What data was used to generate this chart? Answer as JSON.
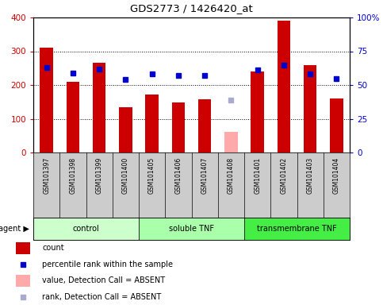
{
  "title": "GDS2773 / 1426420_at",
  "samples": [
    "GSM101397",
    "GSM101398",
    "GSM101399",
    "GSM101400",
    "GSM101405",
    "GSM101406",
    "GSM101407",
    "GSM101408",
    "GSM101401",
    "GSM101402",
    "GSM101403",
    "GSM101404"
  ],
  "counts": [
    310,
    210,
    265,
    135,
    172,
    148,
    157,
    null,
    240,
    390,
    258,
    160
  ],
  "absent_value": [
    null,
    null,
    null,
    null,
    null,
    null,
    null,
    62,
    null,
    null,
    null,
    null
  ],
  "percentile_ranks": [
    63,
    59,
    62,
    54,
    58,
    57,
    57,
    null,
    61,
    65,
    58,
    55
  ],
  "absent_rank": [
    null,
    null,
    null,
    null,
    null,
    null,
    null,
    39,
    null,
    null,
    null,
    null
  ],
  "groups": [
    {
      "label": "control",
      "start": 0,
      "end": 3,
      "color": "#ccffcc"
    },
    {
      "label": "soluble TNF",
      "start": 4,
      "end": 7,
      "color": "#aaffaa"
    },
    {
      "label": "transmembrane TNF",
      "start": 8,
      "end": 11,
      "color": "#44ee44"
    }
  ],
  "ylim_left": [
    0,
    400
  ],
  "ylim_right": [
    0,
    100
  ],
  "yticks_left": [
    0,
    100,
    200,
    300,
    400
  ],
  "yticks_right": [
    0,
    25,
    50,
    75,
    100
  ],
  "yticklabels_right": [
    "0",
    "25",
    "50",
    "75",
    "100%"
  ],
  "bar_color": "#cc0000",
  "absent_bar_color": "#ffaaaa",
  "dot_color": "#0000cc",
  "absent_dot_color": "#aaaacc",
  "left_tick_color": "#cc0000",
  "right_tick_color": "#0000cc",
  "bar_width": 0.5,
  "sample_box_color": "#cccccc",
  "legend_items": [
    {
      "color": "#cc0000",
      "is_square": true,
      "label": "count"
    },
    {
      "color": "#0000cc",
      "is_dot": true,
      "label": "percentile rank within the sample"
    },
    {
      "color": "#ffaaaa",
      "is_square": true,
      "label": "value, Detection Call = ABSENT"
    },
    {
      "color": "#aaaacc",
      "is_dot": true,
      "label": "rank, Detection Call = ABSENT"
    }
  ]
}
